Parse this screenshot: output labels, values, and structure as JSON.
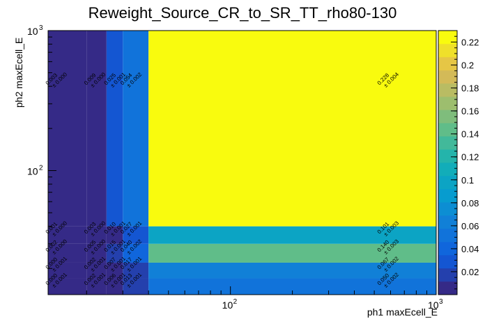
{
  "chart_data": {
    "type": "heatmap",
    "title": "Reweight_Source_CR_to_SR_TT_rho80-130",
    "xlabel": "ph1 maxEcell_E",
    "ylabel": "ph2 maxEcell_E",
    "x_scale": "log",
    "y_scale": "log",
    "xlim": [
      13,
      1000
    ],
    "ylim": [
      13,
      1000
    ],
    "x_ticks": [
      {
        "value": 100,
        "base": "10",
        "exp": "2"
      },
      {
        "value": 1000,
        "base": "10",
        "exp": "3"
      }
    ],
    "y_ticks": [
      {
        "value": 100,
        "base": "10",
        "exp": "2"
      },
      {
        "value": 1000,
        "base": "10",
        "exp": "3"
      }
    ],
    "x_bins": [
      13,
      20,
      25,
      30,
      40,
      1000
    ],
    "y_bins": [
      13,
      17,
      22,
      30,
      40,
      1000
    ],
    "cells": [
      {
        "xi": 0,
        "yi": 0,
        "value": 0.0,
        "error": 0.0,
        "label": "0.000",
        "err_label": "± 0.001"
      },
      {
        "xi": 1,
        "yi": 0,
        "value": 0.002,
        "error": 0.001,
        "label": "0.002",
        "err_label": "± 0.001"
      },
      {
        "xi": 2,
        "yi": 0,
        "value": 0.006,
        "error": 0.001,
        "label": "0.006",
        "err_label": "± 0.001"
      },
      {
        "xi": 3,
        "yi": 0,
        "value": 0.013,
        "error": 0.001,
        "label": "0.013",
        "err_label": "± 0.001"
      },
      {
        "xi": 4,
        "yi": 0,
        "value": 0.05,
        "error": 0.002,
        "label": "0.050",
        "err_label": "± 0.002"
      },
      {
        "xi": 0,
        "yi": 1,
        "value": 0.0,
        "error": 0.0,
        "label": "0.000",
        "err_label": "± 0.001"
      },
      {
        "xi": 1,
        "yi": 1,
        "value": 0.002,
        "error": 0.001,
        "label": "0.002",
        "err_label": "± 0.001"
      },
      {
        "xi": 2,
        "yi": 1,
        "value": 0.007,
        "error": 0.001,
        "label": "0.007",
        "err_label": "± 0.001"
      },
      {
        "xi": 3,
        "yi": 1,
        "value": 0.017,
        "error": 0.001,
        "label": "0.017",
        "err_label": "± 0.001"
      },
      {
        "xi": 4,
        "yi": 1,
        "value": 0.067,
        "error": 0.002,
        "label": "0.067",
        "err_label": "± 0.002"
      },
      {
        "xi": 0,
        "yi": 2,
        "value": 0.002,
        "error": 0.0,
        "label": "0.002",
        "err_label": "± 0.000"
      },
      {
        "xi": 1,
        "yi": 2,
        "value": 0.005,
        "error": 0.0,
        "label": "0.005",
        "err_label": "± 0.000"
      },
      {
        "xi": 2,
        "yi": 2,
        "value": 0.015,
        "error": 0.001,
        "label": "0.015",
        "err_label": "± 0.001"
      },
      {
        "xi": 3,
        "yi": 2,
        "value": 0.04,
        "error": 0.002,
        "label": "0.040",
        "err_label": "± 0.002"
      },
      {
        "xi": 4,
        "yi": 2,
        "value": 0.14,
        "error": 0.003,
        "label": "0.140",
        "err_label": "± 0.003"
      },
      {
        "xi": 0,
        "yi": 3,
        "value": 0.001,
        "error": 0.0,
        "label": "0.001",
        "err_label": "± 0.000"
      },
      {
        "xi": 1,
        "yi": 3,
        "value": 0.003,
        "error": 0.0,
        "label": "0.003",
        "err_label": "± 0.000"
      },
      {
        "xi": 2,
        "yi": 3,
        "value": 0.01,
        "error": 0.001,
        "label": "0.010",
        "err_label": "± 0.001"
      },
      {
        "xi": 3,
        "yi": 3,
        "value": 0.027,
        "error": 0.001,
        "label": "0.027",
        "err_label": "± 0.001"
      },
      {
        "xi": 4,
        "yi": 3,
        "value": 0.101,
        "error": 0.003,
        "label": "0.101",
        "err_label": "± 0.003"
      },
      {
        "xi": 0,
        "yi": 4,
        "value": 0.003,
        "error": 0.0,
        "label": "0.003",
        "err_label": "± 0.000"
      },
      {
        "xi": 1,
        "yi": 4,
        "value": 0.009,
        "error": 0.0,
        "label": "0.009",
        "err_label": "± 0.000"
      },
      {
        "xi": 2,
        "yi": 4,
        "value": 0.025,
        "error": 0.001,
        "label": "0.025",
        "err_label": "± 0.001"
      },
      {
        "xi": 3,
        "yi": 4,
        "value": 0.054,
        "error": 0.002,
        "label": "0.054",
        "err_label": "± 0.002"
      },
      {
        "xi": 4,
        "yi": 4,
        "value": 0.228,
        "error": 0.004,
        "label": "0.228",
        "err_label": "± 0.004"
      }
    ],
    "colorbar": {
      "min": 0.0,
      "max": 0.23,
      "levels": 20,
      "ticks": [
        "0.02",
        "0.04",
        "0.06",
        "0.08",
        "0.1",
        "0.12",
        "0.14",
        "0.16",
        "0.18",
        "0.2",
        "0.22"
      ]
    },
    "grid": false,
    "legend": "colorbar-right"
  }
}
